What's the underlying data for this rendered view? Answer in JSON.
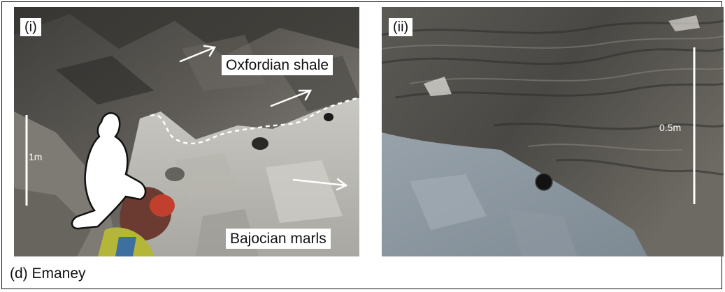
{
  "figure": {
    "caption": "(d) Emaney",
    "panels": [
      {
        "label": "(i)",
        "annotations": {
          "upper_unit": "Oxfordian shale",
          "lower_unit": "Bajocian marls",
          "scale": "1m"
        }
      },
      {
        "label": "(ii)",
        "annotations": {
          "scale": "0.5m"
        }
      }
    ]
  }
}
